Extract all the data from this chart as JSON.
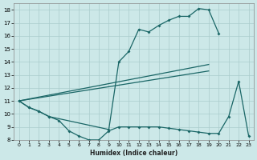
{
  "background_color": "#cce8e8",
  "grid_color": "#aacccc",
  "line_color": "#1a6666",
  "xlim": [
    -0.5,
    23.5
  ],
  "ylim": [
    8,
    18.5
  ],
  "xlabel": "Humidex (Indice chaleur)",
  "xticks": [
    0,
    1,
    2,
    3,
    4,
    5,
    6,
    7,
    8,
    9,
    10,
    11,
    12,
    13,
    14,
    15,
    16,
    17,
    18,
    19,
    20,
    21,
    22,
    23
  ],
  "yticks": [
    8,
    9,
    10,
    11,
    12,
    13,
    14,
    15,
    16,
    17,
    18
  ],
  "line_top": {
    "x": [
      0,
      1,
      2,
      3,
      9,
      10,
      11,
      12,
      13,
      14,
      15,
      16,
      17,
      18,
      19,
      20
    ],
    "y": [
      11,
      10.5,
      10.2,
      9.8,
      8.8,
      14.0,
      14.8,
      16.5,
      16.3,
      16.8,
      17.2,
      17.5,
      17.5,
      18.1,
      18.0,
      16.2
    ]
  },
  "line_bot": {
    "x": [
      0,
      1,
      2,
      3,
      4,
      5,
      6,
      7,
      8,
      9,
      10,
      11,
      12,
      13,
      14,
      15,
      16,
      17,
      18,
      19,
      20,
      21,
      22,
      23
    ],
    "y": [
      11,
      10.5,
      10.2,
      9.8,
      9.5,
      8.7,
      8.3,
      8.0,
      8.0,
      8.7,
      9.0,
      9.0,
      9.0,
      9.0,
      9.0,
      8.9,
      8.8,
      8.7,
      8.6,
      8.5,
      8.5,
      9.8,
      12.5,
      8.3
    ]
  },
  "line_mid1": {
    "x": [
      0,
      19
    ],
    "y": [
      11,
      13.8
    ]
  },
  "line_mid2": {
    "x": [
      0,
      19
    ],
    "y": [
      11,
      13.3
    ]
  }
}
